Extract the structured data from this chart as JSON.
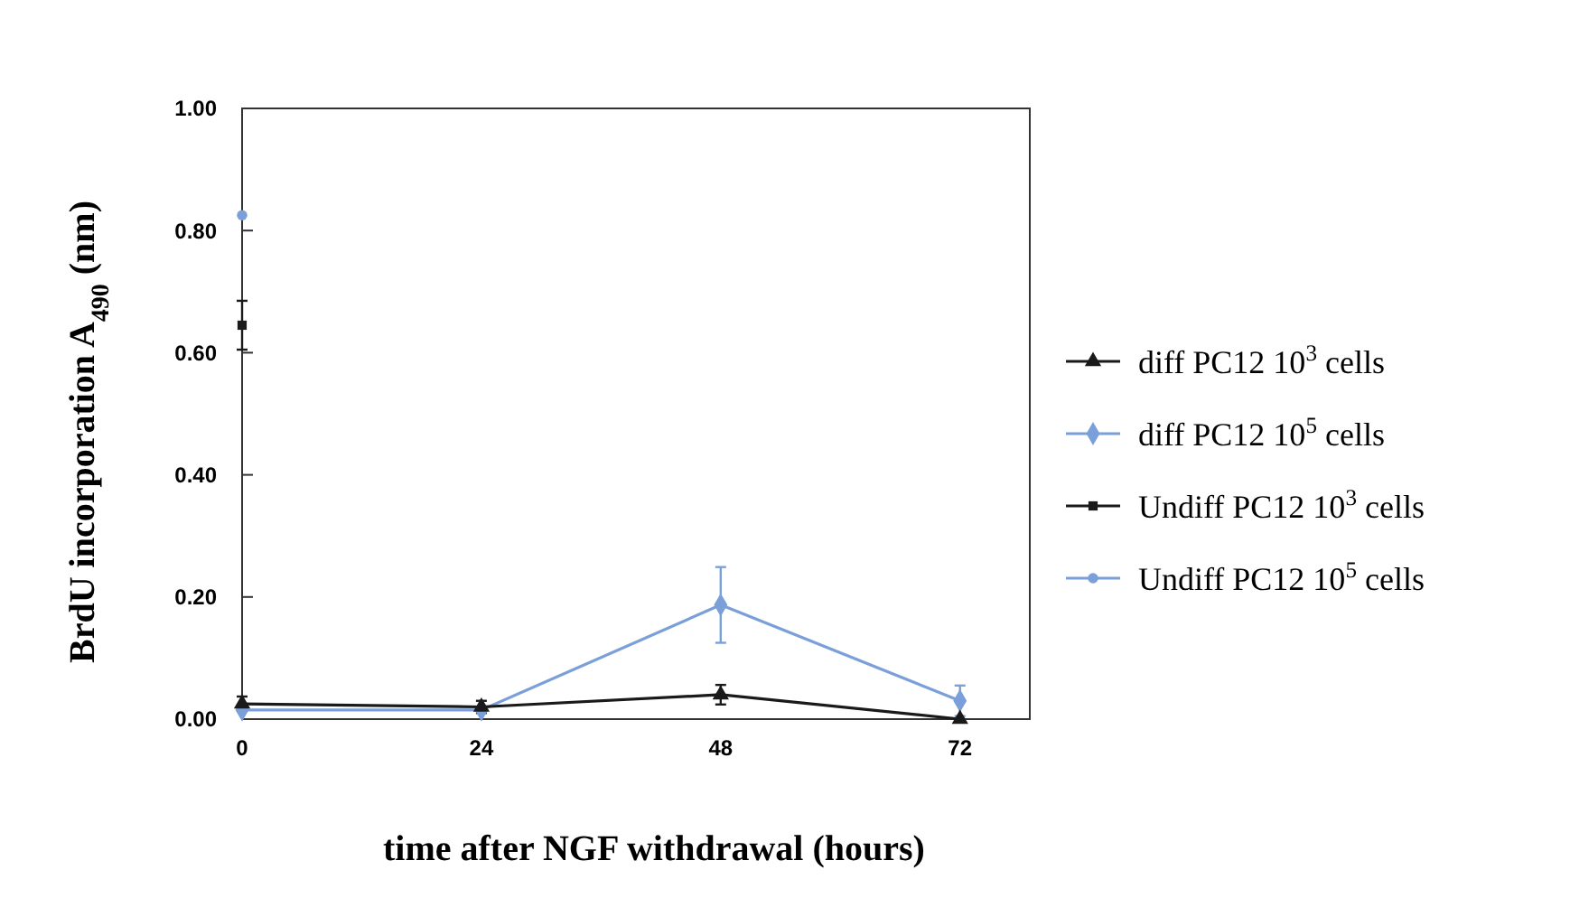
{
  "chart_data": {
    "type": "line",
    "xlabel": "time after NGF withdrawal (hours)",
    "ylabel": "BrdU incorporation A$_{490}$ (nm)",
    "x": [
      0,
      24,
      48,
      72
    ],
    "xlim": [
      0,
      79
    ],
    "xticks": [
      0,
      24,
      48,
      72
    ],
    "ylim": [
      0,
      1
    ],
    "yticks": [
      {
        "value": 0,
        "label": "0.00"
      },
      {
        "value": 0.2,
        "label": "0.20"
      },
      {
        "value": 0.4,
        "label": "0.40"
      },
      {
        "value": 0.6,
        "label": "0.60"
      },
      {
        "value": 0.8,
        "label": "0.80"
      },
      {
        "value": 1,
        "label": "1.00"
      }
    ],
    "grid": false,
    "legend": "right",
    "line_style": "solid",
    "series": [
      {
        "name": "diff PC12 10$^{3}$ cells",
        "color": "#1a1a1a",
        "marker": "triangle",
        "values": [
          0.025,
          0.02,
          0.04,
          0.0
        ],
        "errors": [
          0.012,
          0.01,
          0.016,
          null
        ]
      },
      {
        "name": "diff PC12 10$^{5}$ cells",
        "color": "#7b9fd9",
        "marker": "diamond",
        "values": [
          0.015,
          0.015,
          0.187,
          0.03
        ],
        "errors": [
          null,
          null,
          0.062,
          0.025
        ]
      },
      {
        "name": "Undiff PC12 10$^{3}$ cells",
        "color": "#1a1a1a",
        "marker": "square",
        "values": [
          0.645,
          null,
          null,
          null
        ],
        "errors": [
          0.04,
          null,
          null,
          null
        ]
      },
      {
        "name": "Undiff PC12 10$^{5}$ cells",
        "color": "#7b9fd9",
        "marker": "circle",
        "values": [
          0.825,
          null,
          null,
          null
        ],
        "errors": [
          null,
          null,
          null,
          null
        ]
      }
    ]
  }
}
